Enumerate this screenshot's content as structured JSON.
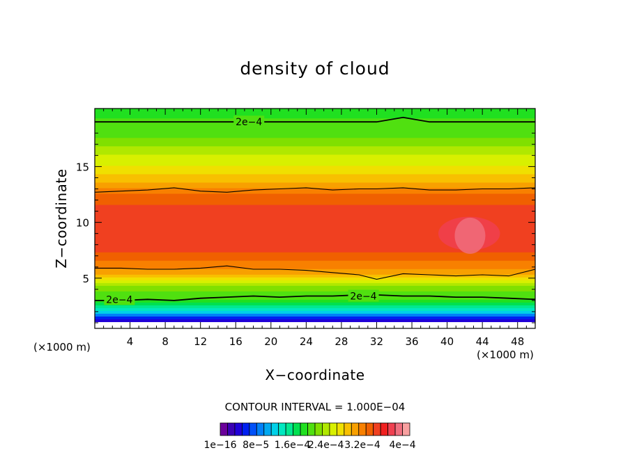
{
  "chart_data": {
    "type": "heatmap",
    "title": "density of cloud",
    "xlabel": "X−coordinate",
    "ylabel": "Z−coordinate",
    "x_unit_label": "(×1000 m)",
    "x_unit_label_right": "(×1000 m)",
    "xlim": [
      0,
      50
    ],
    "ylim": [
      0.5,
      20.2
    ],
    "x_ticks": [
      4,
      8,
      12,
      16,
      20,
      24,
      28,
      32,
      36,
      40,
      44,
      48
    ],
    "y_ticks": [
      5,
      10,
      15
    ],
    "contour_interval_text": "CONTOUR INTERVAL = 1.000E−04",
    "contour_labels": [
      {
        "text": "2e−4",
        "x": 17.5,
        "z": 19.0
      },
      {
        "text": "2e−4",
        "x": 2.8,
        "z": 3.1
      },
      {
        "text": "2e−4",
        "x": 30.5,
        "z": 3.4
      }
    ],
    "contour_lines": [
      {
        "name": "upper",
        "z": [
          19.0,
          19.0,
          19.0,
          19.0,
          19.0,
          19.0,
          19.0,
          19.0,
          19.0,
          19.0,
          19.0,
          19.0,
          19.4,
          19.0,
          19.0,
          19.0,
          19.0,
          19.0
        ]
      },
      {
        "name": "upper-mid",
        "z": [
          12.7,
          12.8,
          12.9,
          13.1,
          12.8,
          12.7,
          12.9,
          13.0,
          13.1,
          12.9,
          13.0,
          13.0,
          13.1,
          12.9,
          12.9,
          13.0,
          13.0,
          13.1
        ]
      },
      {
        "name": "lower-mid",
        "z": [
          5.9,
          5.9,
          5.8,
          5.8,
          5.9,
          6.1,
          5.8,
          5.8,
          5.7,
          5.5,
          5.3,
          4.9,
          5.4,
          5.3,
          5.2,
          5.3,
          5.2,
          5.8
        ]
      },
      {
        "name": "lower",
        "z": [
          3.0,
          3.0,
          3.1,
          3.0,
          3.2,
          3.3,
          3.4,
          3.3,
          3.4,
          3.4,
          3.5,
          3.5,
          3.4,
          3.4,
          3.3,
          3.3,
          3.2,
          3.1
        ]
      }
    ],
    "contour_x": [
      0,
      3,
      6,
      9,
      12,
      15,
      18,
      21,
      24,
      27,
      30,
      32,
      35,
      38,
      41,
      44,
      47,
      50
    ],
    "profile_z": [
      0.5,
      1.0,
      1.5,
      2.0,
      2.5,
      3.0,
      3.5,
      4.0,
      4.5,
      5.0,
      5.5,
      6.0,
      6.5,
      7.0,
      7.5,
      8.0,
      8.5,
      9.0,
      9.5,
      10.0,
      10.5,
      11.0,
      11.5,
      12.0,
      12.5,
      13.0,
      13.5,
      14.0,
      14.5,
      15.0,
      15.5,
      16.0,
      16.5,
      17.0,
      17.5,
      18.0,
      18.5,
      19.0,
      19.5,
      20.2
    ],
    "profile_value": [
      0.0,
      2e-05,
      6e-05,
      0.00012,
      0.00016,
      0.00019,
      0.0002,
      0.00021,
      0.00024,
      0.00027,
      0.00029,
      0.00031,
      0.00032,
      0.00033,
      0.00034,
      0.00034,
      0.00035,
      0.00035,
      0.00035,
      0.00035,
      0.00035,
      0.00034,
      0.00034,
      0.00033,
      0.00032,
      0.00031,
      0.00029,
      0.00028,
      0.00027,
      0.00026,
      0.00025,
      0.00024,
      0.00023,
      0.00022,
      0.00021,
      0.0002,
      0.0002,
      0.0002,
      0.00019,
      0.00019
    ],
    "max_region": {
      "x": [
        39,
        46
      ],
      "z": [
        7.5,
        10.5
      ],
      "value": 0.00037
    },
    "colorbar": {
      "min": 1e-16,
      "max": 0.0004,
      "levels": 25,
      "colors": [
        "#6a009a",
        "#3a00b4",
        "#2000d8",
        "#0020f0",
        "#0050f8",
        "#0080f8",
        "#00a8f0",
        "#00d0e8",
        "#00e8c0",
        "#00e890",
        "#00e050",
        "#20e020",
        "#50e010",
        "#80e000",
        "#b0e800",
        "#d8f000",
        "#f0e000",
        "#f8c000",
        "#f8a000",
        "#f88000",
        "#f06000",
        "#f04020",
        "#f02020",
        "#f04050",
        "#f07080",
        "#f8a0a0"
      ],
      "tick_labels": [
        "1e−16",
        "8e−5",
        "1.6e−4",
        "2.4e−4",
        "3.2e−4",
        "4e−4"
      ]
    }
  }
}
